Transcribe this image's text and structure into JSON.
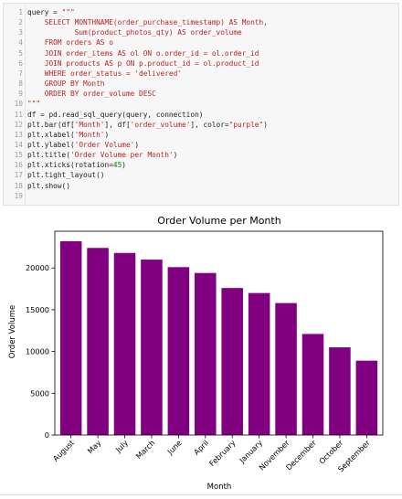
{
  "code_cell": {
    "lines": [
      {
        "n": "1",
        "parts": [
          {
            "t": "query = ",
            "c": ""
          },
          {
            "t": "\"\"\"",
            "c": "str"
          }
        ]
      },
      {
        "n": "2",
        "parts": [
          {
            "t": "    SELECT MONTHNAME(order_purchase_timestamp) AS Month,",
            "c": "str"
          }
        ]
      },
      {
        "n": "3",
        "parts": [
          {
            "t": "           Sum(product_photos_qty) AS order_volume",
            "c": "str"
          }
        ]
      },
      {
        "n": "4",
        "parts": [
          {
            "t": "    FROM orders AS o",
            "c": "str"
          }
        ]
      },
      {
        "n": "5",
        "parts": [
          {
            "t": "    JOIN order_items AS ol ON o.order_id = ol.order_id",
            "c": "str"
          }
        ]
      },
      {
        "n": "6",
        "parts": [
          {
            "t": "    JOIN products AS p ON p.product_id = ol.product_id",
            "c": "str"
          }
        ]
      },
      {
        "n": "7",
        "parts": [
          {
            "t": "    WHERE order_status = 'delivered'",
            "c": "str"
          }
        ]
      },
      {
        "n": "8",
        "parts": [
          {
            "t": "    GROUP BY Month",
            "c": "str"
          }
        ]
      },
      {
        "n": "9",
        "parts": [
          {
            "t": "    ORDER BY order_volume DESC",
            "c": "str"
          }
        ]
      },
      {
        "n": "10",
        "parts": [
          {
            "t": "\"\"\"",
            "c": "str"
          }
        ]
      },
      {
        "n": "11",
        "parts": [
          {
            "t": "df = pd.read_sql_query(query, connection)",
            "c": ""
          }
        ]
      },
      {
        "n": "12",
        "parts": [
          {
            "t": "plt.bar(df[",
            "c": ""
          },
          {
            "t": "'Month'",
            "c": "str"
          },
          {
            "t": "], df[",
            "c": ""
          },
          {
            "t": "'order_volume'",
            "c": "str"
          },
          {
            "t": "], color=",
            "c": ""
          },
          {
            "t": "\"purple\"",
            "c": "str"
          },
          {
            "t": ")",
            "c": ""
          }
        ]
      },
      {
        "n": "13",
        "parts": [
          {
            "t": "plt.xlabel(",
            "c": ""
          },
          {
            "t": "'Month'",
            "c": "str"
          },
          {
            "t": ")",
            "c": ""
          }
        ]
      },
      {
        "n": "14",
        "parts": [
          {
            "t": "plt.ylabel(",
            "c": ""
          },
          {
            "t": "'Order Volume'",
            "c": "str"
          },
          {
            "t": ")",
            "c": ""
          }
        ]
      },
      {
        "n": "15",
        "parts": [
          {
            "t": "plt.title(",
            "c": ""
          },
          {
            "t": "'Order Volume per Month'",
            "c": "str"
          },
          {
            "t": ")",
            "c": ""
          }
        ]
      },
      {
        "n": "16",
        "parts": [
          {
            "t": "plt.xticks(rotation=",
            "c": ""
          },
          {
            "t": "45",
            "c": "num"
          },
          {
            "t": ")",
            "c": ""
          }
        ]
      },
      {
        "n": "17",
        "parts": [
          {
            "t": "plt.tight_layout()",
            "c": ""
          }
        ]
      },
      {
        "n": "18",
        "parts": [
          {
            "t": "plt.show()",
            "c": ""
          }
        ]
      },
      {
        "n": "19",
        "parts": []
      }
    ]
  },
  "chart_data": {
    "type": "bar",
    "title": "Order Volume per Month",
    "xlabel": "Month",
    "ylabel": "Order Volume",
    "categories": [
      "August",
      "May",
      "July",
      "March",
      "June",
      "April",
      "February",
      "January",
      "November",
      "December",
      "October",
      "September"
    ],
    "values": [
      23200,
      22400,
      21800,
      21000,
      20100,
      19400,
      17600,
      17000,
      15800,
      12100,
      10500,
      8900
    ],
    "ylim": [
      0,
      24400
    ],
    "yticks": [
      0,
      5000,
      10000,
      15000,
      20000
    ],
    "bar_color": "#800080",
    "x_tick_rotation": 45,
    "grid": false
  }
}
